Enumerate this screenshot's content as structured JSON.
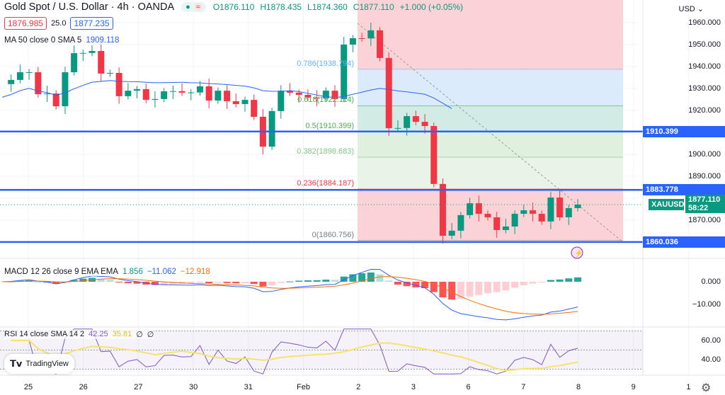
{
  "header": {
    "title": "Gold Spot / U.S. Dollar · 4h · OANDA",
    "open": "O1876.110",
    "high": "H1878.435",
    "low": "L1874.360",
    "close": "C1877.110",
    "change": "+1.000 (+0.05%)"
  },
  "quote": {
    "sell": "1876.985",
    "spread": "25.0",
    "buy": "1877.235"
  },
  "ma_legend": {
    "label": "MA 50 close 0 SMA 5",
    "value": "1909.118"
  },
  "macd_legend": {
    "label": "MACD 12 26 close 9 EMA EMA",
    "hist": "1.856",
    "macd": "−11.062",
    "signal": "−12.918"
  },
  "rsi_legend": {
    "label": "RSI 14 close SMA 14 2",
    "rsi": "42.25",
    "sma": "35.81",
    "extra1": "∅",
    "extra2": "∅"
  },
  "price_axis": {
    "currency": "USD ⌄",
    "labels": [
      "1960.000",
      "1950.000",
      "1940.000",
      "1930.000",
      "1920.000",
      "1900.000",
      "1890.000",
      "1870.000"
    ],
    "values": [
      1960,
      1950,
      1940,
      1930,
      1920,
      1900,
      1890,
      1870
    ]
  },
  "macd_axis": [
    {
      "label": "0.000",
      "value": 0
    },
    {
      "label": "−10.000",
      "value": -10
    }
  ],
  "rsi_axis": [
    {
      "label": "60.00",
      "value": 60
    },
    {
      "label": "40.00",
      "value": 40
    }
  ],
  "levels": [
    {
      "label": "1910.399",
      "value": 1910.399
    },
    {
      "label": "1883.778",
      "value": 1883.778
    },
    {
      "label": "1860.036",
      "value": 1860.036
    }
  ],
  "current": {
    "symbol": "XAUUSD",
    "price": "1877.110",
    "countdown": "58:22",
    "value": 1877.11
  },
  "fib": [
    {
      "label": "0.786(1938.794)",
      "value": 1938.794,
      "color": "#64b5f6"
    },
    {
      "label": "0.618(1922.114)",
      "value": 1922.114,
      "color": "#4caf50"
    },
    {
      "label": "0.5(1910.399)",
      "value": 1910.399,
      "color": "#4caf50"
    },
    {
      "label": "0.382(1898.683)",
      "value": 1898.683,
      "color": "#81c784"
    },
    {
      "label": "0.236(1884.187)",
      "value": 1884.187,
      "color": "#f23645"
    },
    {
      "label": "0(1860.756)",
      "value": 1860.756,
      "color": "#787b86"
    }
  ],
  "fib_top": 1960.042,
  "time_axis": [
    "25",
    "26",
    "27",
    "30",
    "31",
    "Feb",
    "2",
    "3",
    "6",
    "7",
    "8",
    "9",
    "1"
  ],
  "closes": [
    1932,
    1933.9,
    1937.4,
    1937.4,
    1927.4,
    1927.7,
    1921.9,
    1937.4,
    1946.1,
    1946.2,
    1947.1,
    1936.8,
    1937.1,
    1926.5,
    1929.0,
    1929.7,
    1924.8,
    1925.2,
    1928.7,
    1928.8,
    1928.1,
    1928.2,
    1931.0,
    1924.5,
    1929.0,
    1924.2,
    1922.9,
    1924.8,
    1917.1,
    1903.5,
    1919.7,
    1929.0,
    1928.1,
    1927.1,
    1925.8,
    1925.5,
    1929.0,
    1925.2,
    1950.0,
    1952.9,
    1952.8,
    1956.5,
    1943.9,
    1911.9,
    1912.0,
    1917.4,
    1914.8,
    1912.9,
    1886.5,
    1862.9,
    1865.2,
    1872.3,
    1877.7,
    1872.9,
    1871.3,
    1865.5,
    1867.1,
    1872.9,
    1874.5,
    1872.9,
    1869.4,
    1880.3,
    1871.3,
    1875.5,
    1877.11
  ],
  "colors": {
    "up": "#089981",
    "down": "#f23645",
    "ma": "#2962ff",
    "level": "#2962ff",
    "macd": "#2962ff",
    "signal": "#ff6d00",
    "rsi": "#7e57c2",
    "rsi_sma": "#f5e36b"
  },
  "branding": "TradingView"
}
